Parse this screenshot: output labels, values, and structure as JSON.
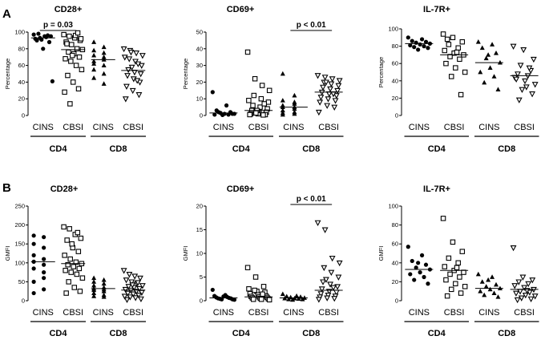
{
  "panels": [
    {
      "letter": "A"
    },
    {
      "letter": "B"
    }
  ],
  "chart_data": [
    {
      "type": "scatter",
      "row": "A",
      "title": "CD28+",
      "ylabel": "Percentage",
      "ylim": [
        0,
        100
      ],
      "yticks": [
        0,
        20,
        40,
        60,
        80,
        100
      ],
      "categories": [
        "CINS",
        "CBSI",
        "CINS",
        "CBSI"
      ],
      "groups": [
        "CD4",
        "CD8"
      ],
      "markers": [
        "circle",
        "square",
        "triangle-up",
        "triangle-down"
      ],
      "medians": [
        93,
        79,
        67,
        54
      ],
      "series": [
        {
          "values": [
            97,
            95,
            92,
            94,
            90,
            96,
            98,
            88,
            93,
            95,
            91,
            41,
            80
          ]
        },
        {
          "values": [
            97,
            95,
            93,
            90,
            88,
            85,
            80,
            79,
            76,
            74,
            70,
            68,
            65,
            60,
            55,
            48,
            40,
            32,
            28,
            14,
            96,
            92,
            86,
            72,
            99
          ]
        },
        {
          "values": [
            88,
            82,
            78,
            75,
            72,
            67,
            65,
            60,
            55,
            50,
            45,
            38,
            62,
            70
          ]
        },
        {
          "values": [
            80,
            78,
            75,
            72,
            68,
            65,
            60,
            55,
            52,
            50,
            48,
            44,
            40,
            35,
            30,
            25,
            20,
            58,
            62,
            70,
            76,
            42
          ]
        }
      ],
      "annotation": {
        "text": "p = 0.03",
        "between": [
          0,
          1
        ]
      }
    },
    {
      "type": "scatter",
      "row": "A",
      "title": "CD69+",
      "ylabel": "Percentage",
      "ylim": [
        0,
        50
      ],
      "yticks": [
        0,
        10,
        20,
        30,
        40,
        50
      ],
      "categories": [
        "CINS",
        "CBSI",
        "CINS",
        "CBSI"
      ],
      "groups": [
        "CD4",
        "CD8"
      ],
      "markers": [
        "circle",
        "square",
        "triangle-up",
        "triangle-down"
      ],
      "medians": [
        1.5,
        3,
        5,
        14
      ],
      "series": [
        {
          "values": [
            14,
            6,
            3,
            2,
            1.5,
            1,
            1,
            0.5,
            0.5,
            2,
            1,
            0.3
          ]
        },
        {
          "values": [
            38,
            22,
            18,
            15,
            12,
            10,
            8,
            6,
            5,
            4,
            3,
            2,
            2,
            1,
            1,
            0.5,
            0.5,
            3,
            7,
            9,
            1.5,
            0.3
          ]
        },
        {
          "values": [
            25,
            12,
            9,
            8,
            6,
            5,
            5,
            4,
            3,
            2,
            1.5,
            1,
            0.5,
            7
          ]
        },
        {
          "values": [
            24,
            23,
            22,
            21,
            20,
            19,
            18,
            17,
            16,
            15,
            14,
            13,
            12,
            11,
            10,
            9,
            8,
            6,
            5,
            2,
            20,
            13
          ]
        }
      ],
      "annotation": {
        "text": "p < 0.01",
        "between": [
          2,
          3
        ]
      }
    },
    {
      "type": "scatter",
      "row": "A",
      "title": "IL-7R+",
      "ylabel": "Percentage",
      "ylim": [
        0,
        100
      ],
      "yticks": [
        0,
        20,
        40,
        60,
        80,
        100
      ],
      "categories": [
        "CINS",
        "CBSI",
        "CINS",
        "CBSI"
      ],
      "groups": [
        "CD4",
        "CD8"
      ],
      "markers": [
        "circle",
        "square",
        "triangle-up",
        "triangle-down"
      ],
      "medians": [
        83,
        70,
        61,
        46
      ],
      "series": [
        {
          "values": [
            90,
            88,
            86,
            85,
            84,
            83,
            82,
            81,
            80,
            79,
            78,
            76
          ]
        },
        {
          "values": [
            94,
            90,
            85,
            82,
            78,
            75,
            72,
            70,
            68,
            65,
            60,
            55,
            50,
            45,
            24,
            88,
            73
          ]
        },
        {
          "values": [
            85,
            82,
            78,
            72,
            66,
            61,
            55,
            50,
            45,
            38,
            30,
            70
          ]
        },
        {
          "values": [
            80,
            76,
            65,
            58,
            52,
            48,
            46,
            44,
            40,
            36,
            30,
            25,
            18,
            55,
            42,
            33
          ]
        }
      ]
    },
    {
      "type": "scatter",
      "row": "B",
      "title": "CD28+",
      "ylabel": "GMFI",
      "ylim": [
        0,
        250
      ],
      "yticks": [
        0,
        50,
        100,
        150,
        200,
        250
      ],
      "categories": [
        "CINS",
        "CBSI",
        "CINS",
        "CBSI"
      ],
      "groups": [
        "CD4",
        "CD8"
      ],
      "markers": [
        "circle",
        "square",
        "triangle-up",
        "triangle-down"
      ],
      "medians": [
        103,
        98,
        32,
        28
      ],
      "series": [
        {
          "values": [
            172,
            168,
            150,
            140,
            120,
            110,
            103,
            95,
            85,
            60,
            50,
            30,
            20,
            75
          ]
        },
        {
          "values": [
            195,
            190,
            175,
            165,
            160,
            140,
            130,
            120,
            110,
            102,
            98,
            95,
            90,
            85,
            80,
            75,
            70,
            60,
            50,
            35,
            25,
            20,
            150,
            180
          ]
        },
        {
          "values": [
            60,
            55,
            50,
            45,
            40,
            35,
            32,
            30,
            28,
            25,
            20,
            15,
            12,
            10
          ]
        },
        {
          "values": [
            80,
            70,
            65,
            60,
            55,
            50,
            45,
            40,
            38,
            35,
            32,
            30,
            28,
            25,
            22,
            20,
            18,
            15,
            12,
            10,
            8,
            5,
            3,
            42,
            48
          ]
        }
      ]
    },
    {
      "type": "scatter",
      "row": "B",
      "title": "CD69+",
      "ylabel": "GMFI",
      "ylim": [
        0,
        20
      ],
      "yticks": [
        0,
        5,
        10,
        15,
        20
      ],
      "categories": [
        "CINS",
        "CBSI",
        "CINS",
        "CBSI"
      ],
      "groups": [
        "CD4",
        "CD8"
      ],
      "markers": [
        "circle",
        "square",
        "triangle-up",
        "triangle-down"
      ],
      "medians": [
        0.6,
        0.8,
        0.6,
        2.2
      ],
      "series": [
        {
          "values": [
            2.3,
            1.2,
            1,
            0.8,
            0.7,
            0.6,
            0.5,
            0.5,
            0.4,
            0.3,
            0.3,
            0.2,
            0.9
          ]
        },
        {
          "values": [
            7,
            5,
            3,
            2.5,
            2,
            1.8,
            1.5,
            1.2,
            1,
            0.9,
            0.8,
            0.7,
            0.6,
            0.5,
            0.4,
            0.3,
            0.3,
            0.2,
            2.2,
            1.4
          ]
        },
        {
          "values": [
            1.4,
            1,
            0.9,
            0.8,
            0.7,
            0.6,
            0.5,
            0.5,
            0.4,
            0.3,
            0.3,
            0.2
          ]
        },
        {
          "values": [
            16.5,
            15,
            9,
            8,
            7,
            6,
            5,
            4,
            3.5,
            3,
            2.5,
            2,
            1.8,
            1.5,
            1.2,
            1,
            0.8,
            0.6,
            0.5,
            0.3,
            4.5,
            2.8
          ]
        }
      ],
      "annotation": {
        "text": "p < 0.01",
        "between": [
          2,
          3
        ]
      }
    },
    {
      "type": "scatter",
      "row": "B",
      "title": "IL-7R+",
      "ylabel": "GMFI",
      "ylim": [
        0,
        100
      ],
      "yticks": [
        0,
        20,
        40,
        60,
        80,
        100
      ],
      "categories": [
        "CINS",
        "CBSI",
        "CINS",
        "CBSI"
      ],
      "groups": [
        "CD4",
        "CD8"
      ],
      "markers": [
        "circle",
        "square",
        "triangle-up",
        "triangle-down"
      ],
      "medians": [
        33,
        32,
        13,
        12
      ],
      "series": [
        {
          "values": [
            57,
            48,
            42,
            38,
            35,
            33,
            30,
            28,
            25,
            22,
            18,
            40
          ]
        },
        {
          "values": [
            87,
            62,
            52,
            45,
            40,
            36,
            32,
            30,
            28,
            25,
            22,
            18,
            15,
            12,
            8,
            5,
            35
          ]
        },
        {
          "values": [
            28,
            25,
            20,
            17,
            15,
            13,
            12,
            10,
            8,
            6,
            4,
            22
          ]
        },
        {
          "values": [
            56,
            25,
            22,
            20,
            18,
            16,
            14,
            12,
            10,
            9,
            8,
            6,
            5,
            3,
            2,
            1,
            11
          ]
        }
      ]
    }
  ]
}
